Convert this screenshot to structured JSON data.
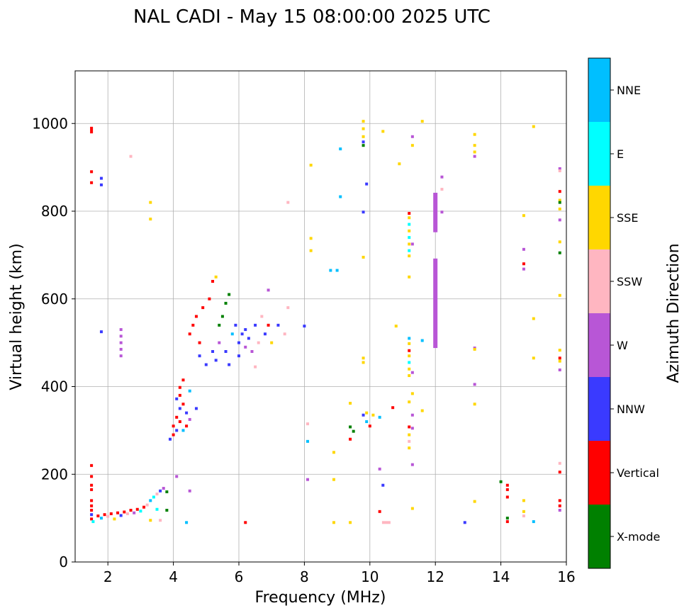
{
  "chart_data": {
    "type": "scatter",
    "title": "NAL CADI - May 15 08:00:00 2025 UTC",
    "xlabel": "Frequency (MHz)",
    "ylabel": "Virtual height (km)",
    "xlim": [
      1.0,
      16.0
    ],
    "ylim": [
      0,
      1120
    ],
    "xticks": [
      2,
      4,
      6,
      8,
      10,
      12,
      14,
      16
    ],
    "yticks": [
      0,
      200,
      400,
      600,
      800,
      1000
    ],
    "grid": true,
    "colorbar": {
      "label": "Azimuth Direction",
      "categories": [
        {
          "name": "X-mode",
          "color": "#008000"
        },
        {
          "name": "Vertical",
          "color": "#ff0000"
        },
        {
          "name": "NNW",
          "color": "#3a3aff"
        },
        {
          "name": "W",
          "color": "#b856d6"
        },
        {
          "name": "SSW",
          "color": "#ffb6c1"
        },
        {
          "name": "SSE",
          "color": "#ffd700"
        },
        {
          "name": "E",
          "color": "#00ffff"
        },
        {
          "name": "NNE",
          "color": "#00bfff"
        }
      ]
    },
    "points": [
      {
        "f": 1.5,
        "h": 985,
        "c": "Vertical",
        "hh": 15
      },
      {
        "f": 1.5,
        "h": 890,
        "c": "Vertical"
      },
      {
        "f": 1.5,
        "h": 865,
        "c": "Vertical"
      },
      {
        "f": 1.5,
        "h": 220,
        "c": "Vertical"
      },
      {
        "f": 1.5,
        "h": 195,
        "c": "Vertical"
      },
      {
        "f": 1.5,
        "h": 175,
        "c": "Vertical"
      },
      {
        "f": 1.5,
        "h": 165,
        "c": "Vertical"
      },
      {
        "f": 1.5,
        "h": 140,
        "c": "Vertical"
      },
      {
        "f": 1.5,
        "h": 128,
        "c": "Vertical"
      },
      {
        "f": 1.5,
        "h": 118,
        "c": "Vertical"
      },
      {
        "f": 1.5,
        "h": 108,
        "c": "NNW"
      },
      {
        "f": 1.5,
        "h": 98,
        "c": "Vertical"
      },
      {
        "f": 1.55,
        "h": 92,
        "c": "E"
      },
      {
        "f": 1.8,
        "h": 875,
        "c": "NNW"
      },
      {
        "f": 1.8,
        "h": 860,
        "c": "NNW"
      },
      {
        "f": 1.8,
        "h": 525,
        "c": "NNW"
      },
      {
        "f": 2.4,
        "h": 530,
        "c": "W"
      },
      {
        "f": 2.4,
        "h": 515,
        "c": "W"
      },
      {
        "f": 2.4,
        "h": 500,
        "c": "W"
      },
      {
        "f": 2.4,
        "h": 485,
        "c": "W"
      },
      {
        "f": 2.4,
        "h": 470,
        "c": "W"
      },
      {
        "f": 2.7,
        "h": 925,
        "c": "SSW"
      },
      {
        "f": 3.3,
        "h": 820,
        "c": "SSE"
      },
      {
        "f": 3.3,
        "h": 782,
        "c": "SSE"
      },
      {
        "f": 1.7,
        "h": 105,
        "c": "Vertical"
      },
      {
        "f": 1.8,
        "h": 100,
        "c": "NNE"
      },
      {
        "f": 1.9,
        "h": 108,
        "c": "Vertical"
      },
      {
        "f": 2.0,
        "h": 104,
        "c": "SSW"
      },
      {
        "f": 2.1,
        "h": 110,
        "c": "Vertical"
      },
      {
        "f": 2.2,
        "h": 98,
        "c": "SSE"
      },
      {
        "f": 2.3,
        "h": 112,
        "c": "Vertical"
      },
      {
        "f": 2.4,
        "h": 106,
        "c": "NNW"
      },
      {
        "f": 2.5,
        "h": 114,
        "c": "Vertical"
      },
      {
        "f": 2.6,
        "h": 110,
        "c": "SSW"
      },
      {
        "f": 2.7,
        "h": 118,
        "c": "Vertical"
      },
      {
        "f": 2.8,
        "h": 112,
        "c": "W"
      },
      {
        "f": 2.9,
        "h": 120,
        "c": "Vertical"
      },
      {
        "f": 3.0,
        "h": 116,
        "c": "E"
      },
      {
        "f": 3.1,
        "h": 125,
        "c": "Vertical"
      },
      {
        "f": 3.2,
        "h": 130,
        "c": "SSW"
      },
      {
        "f": 3.3,
        "h": 140,
        "c": "NNE"
      },
      {
        "f": 3.4,
        "h": 148,
        "c": "E"
      },
      {
        "f": 3.5,
        "h": 155,
        "c": "SSW"
      },
      {
        "f": 3.6,
        "h": 162,
        "c": "NNW"
      },
      {
        "f": 3.7,
        "h": 168,
        "c": "W"
      },
      {
        "f": 3.8,
        "h": 160,
        "c": "X-mode"
      },
      {
        "f": 3.5,
        "h": 120,
        "c": "E"
      },
      {
        "f": 3.8,
        "h": 118,
        "c": "X-mode"
      },
      {
        "f": 3.3,
        "h": 95,
        "c": "SSE"
      },
      {
        "f": 3.6,
        "h": 95,
        "c": "SSW"
      },
      {
        "f": 4.1,
        "h": 195,
        "c": "W"
      },
      {
        "f": 4.4,
        "h": 90,
        "c": "NNE"
      },
      {
        "f": 6.2,
        "h": 90,
        "c": "Vertical"
      },
      {
        "f": 4.5,
        "h": 162,
        "c": "W"
      },
      {
        "f": 3.9,
        "h": 280,
        "c": "NNW"
      },
      {
        "f": 4.0,
        "h": 290,
        "c": "Vertical"
      },
      {
        "f": 4.0,
        "h": 310,
        "c": "Vertical"
      },
      {
        "f": 4.1,
        "h": 300,
        "c": "NNW"
      },
      {
        "f": 4.1,
        "h": 330,
        "c": "Vertical"
      },
      {
        "f": 4.2,
        "h": 350,
        "c": "NNW"
      },
      {
        "f": 4.2,
        "h": 320,
        "c": "Vertical"
      },
      {
        "f": 4.3,
        "h": 360,
        "c": "Vertical"
      },
      {
        "f": 4.3,
        "h": 300,
        "c": "NNE"
      },
      {
        "f": 4.4,
        "h": 340,
        "c": "NNW"
      },
      {
        "f": 4.4,
        "h": 310,
        "c": "Vertical"
      },
      {
        "f": 4.2,
        "h": 380,
        "c": "Vertical"
      },
      {
        "f": 4.2,
        "h": 398,
        "c": "Vertical"
      },
      {
        "f": 4.3,
        "h": 415,
        "c": "Vertical"
      },
      {
        "f": 4.5,
        "h": 390,
        "c": "NNE"
      },
      {
        "f": 4.7,
        "h": 350,
        "c": "NNW"
      },
      {
        "f": 4.1,
        "h": 372,
        "c": "NNW"
      },
      {
        "f": 4.5,
        "h": 325,
        "c": "W"
      },
      {
        "f": 4.5,
        "h": 520,
        "c": "Vertical"
      },
      {
        "f": 4.6,
        "h": 540,
        "c": "Vertical"
      },
      {
        "f": 4.7,
        "h": 560,
        "c": "Vertical"
      },
      {
        "f": 4.8,
        "h": 500,
        "c": "Vertical"
      },
      {
        "f": 4.9,
        "h": 580,
        "c": "Vertical"
      },
      {
        "f": 4.8,
        "h": 470,
        "c": "NNW"
      },
      {
        "f": 5.0,
        "h": 450,
        "c": "NNW"
      },
      {
        "f": 5.1,
        "h": 600,
        "c": "Vertical"
      },
      {
        "f": 5.2,
        "h": 640,
        "c": "Vertical"
      },
      {
        "f": 5.3,
        "h": 650,
        "c": "SSE"
      },
      {
        "f": 5.2,
        "h": 480,
        "c": "NNW"
      },
      {
        "f": 5.3,
        "h": 460,
        "c": "NNW"
      },
      {
        "f": 5.4,
        "h": 500,
        "c": "W"
      },
      {
        "f": 5.4,
        "h": 540,
        "c": "X-mode"
      },
      {
        "f": 5.5,
        "h": 560,
        "c": "X-mode"
      },
      {
        "f": 5.6,
        "h": 590,
        "c": "X-mode"
      },
      {
        "f": 5.7,
        "h": 610,
        "c": "X-mode"
      },
      {
        "f": 5.6,
        "h": 480,
        "c": "NNW"
      },
      {
        "f": 5.7,
        "h": 450,
        "c": "NNW"
      },
      {
        "f": 5.8,
        "h": 520,
        "c": "NNE"
      },
      {
        "f": 5.9,
        "h": 540,
        "c": "NNW"
      },
      {
        "f": 6.0,
        "h": 500,
        "c": "NNW"
      },
      {
        "f": 6.0,
        "h": 470,
        "c": "NNW"
      },
      {
        "f": 6.1,
        "h": 520,
        "c": "NNW"
      },
      {
        "f": 6.2,
        "h": 490,
        "c": "W"
      },
      {
        "f": 6.2,
        "h": 530,
        "c": "NNW"
      },
      {
        "f": 6.3,
        "h": 510,
        "c": "NNW"
      },
      {
        "f": 6.4,
        "h": 480,
        "c": "W"
      },
      {
        "f": 6.5,
        "h": 540,
        "c": "NNW"
      },
      {
        "f": 6.6,
        "h": 500,
        "c": "SSW"
      },
      {
        "f": 6.7,
        "h": 560,
        "c": "SSW"
      },
      {
        "f": 6.8,
        "h": 520,
        "c": "NNW"
      },
      {
        "f": 6.9,
        "h": 540,
        "c": "Vertical"
      },
      {
        "f": 7.0,
        "h": 500,
        "c": "SSE"
      },
      {
        "f": 7.2,
        "h": 540,
        "c": "NNW"
      },
      {
        "f": 7.4,
        "h": 520,
        "c": "SSW"
      },
      {
        "f": 7.5,
        "h": 580,
        "c": "SSW"
      },
      {
        "f": 6.9,
        "h": 620,
        "c": "W"
      },
      {
        "f": 6.5,
        "h": 445,
        "c": "SSW"
      },
      {
        "f": 7.5,
        "h": 820,
        "c": "SSW"
      },
      {
        "f": 8.0,
        "h": 538,
        "c": "NNW"
      },
      {
        "f": 8.1,
        "h": 315,
        "c": "SSW"
      },
      {
        "f": 8.1,
        "h": 275,
        "c": "NNE"
      },
      {
        "f": 8.1,
        "h": 188,
        "c": "W"
      },
      {
        "f": 8.2,
        "h": 905,
        "c": "SSE"
      },
      {
        "f": 8.2,
        "h": 738,
        "c": "SSE"
      },
      {
        "f": 8.2,
        "h": 710,
        "c": "SSE"
      },
      {
        "f": 8.8,
        "h": 665,
        "c": "NNE"
      },
      {
        "f": 9.0,
        "h": 665,
        "c": "NNE"
      },
      {
        "f": 8.9,
        "h": 250,
        "c": "SSE"
      },
      {
        "f": 8.9,
        "h": 188,
        "c": "SSE"
      },
      {
        "f": 8.9,
        "h": 90,
        "c": "SSE"
      },
      {
        "f": 9.1,
        "h": 942,
        "c": "NNE"
      },
      {
        "f": 9.1,
        "h": 833,
        "c": "NNE"
      },
      {
        "f": 9.4,
        "h": 362,
        "c": "SSE"
      },
      {
        "f": 9.4,
        "h": 308,
        "c": "X-mode"
      },
      {
        "f": 9.5,
        "h": 298,
        "c": "X-mode"
      },
      {
        "f": 9.4,
        "h": 280,
        "c": "Vertical"
      },
      {
        "f": 9.4,
        "h": 90,
        "c": "SSE"
      },
      {
        "f": 9.8,
        "h": 1005,
        "c": "SSE"
      },
      {
        "f": 9.8,
        "h": 988,
        "c": "SSE"
      },
      {
        "f": 9.8,
        "h": 970,
        "c": "SSE"
      },
      {
        "f": 9.8,
        "h": 958,
        "c": "NNW"
      },
      {
        "f": 9.8,
        "h": 950,
        "c": "X-mode"
      },
      {
        "f": 9.8,
        "h": 798,
        "c": "NNW"
      },
      {
        "f": 9.8,
        "h": 695,
        "c": "SSE"
      },
      {
        "f": 9.8,
        "h": 465,
        "c": "SSE"
      },
      {
        "f": 9.8,
        "h": 455,
        "c": "SSE"
      },
      {
        "f": 9.9,
        "h": 862,
        "c": "NNW"
      },
      {
        "f": 9.8,
        "h": 335,
        "c": "NNW"
      },
      {
        "f": 9.9,
        "h": 340,
        "c": "SSE"
      },
      {
        "f": 9.9,
        "h": 320,
        "c": "NNE"
      },
      {
        "f": 10.0,
        "h": 310,
        "c": "Vertical"
      },
      {
        "f": 10.1,
        "h": 335,
        "c": "SSE"
      },
      {
        "f": 10.3,
        "h": 330,
        "c": "NNE"
      },
      {
        "f": 10.4,
        "h": 982,
        "c": "SSE"
      },
      {
        "f": 10.5,
        "h": 90,
        "c": "SSW",
        "ww": 3
      },
      {
        "f": 10.3,
        "h": 212,
        "c": "W"
      },
      {
        "f": 10.3,
        "h": 115,
        "c": "Vertical"
      },
      {
        "f": 10.4,
        "h": 175,
        "c": "NNW"
      },
      {
        "f": 10.7,
        "h": 352,
        "c": "Vertical"
      },
      {
        "f": 10.9,
        "h": 908,
        "c": "SSE"
      },
      {
        "f": 10.8,
        "h": 538,
        "c": "SSE"
      },
      {
        "f": 11.2,
        "h": 795,
        "c": "Vertical"
      },
      {
        "f": 11.2,
        "h": 785,
        "c": "SSE"
      },
      {
        "f": 11.2,
        "h": 770,
        "c": "E"
      },
      {
        "f": 11.2,
        "h": 755,
        "c": "SSE"
      },
      {
        "f": 11.2,
        "h": 740,
        "c": "E"
      },
      {
        "f": 11.2,
        "h": 725,
        "c": "SSE"
      },
      {
        "f": 11.2,
        "h": 710,
        "c": "E"
      },
      {
        "f": 11.2,
        "h": 698,
        "c": "SSE"
      },
      {
        "f": 11.2,
        "h": 650,
        "c": "SSE"
      },
      {
        "f": 11.2,
        "h": 510,
        "c": "NNE"
      },
      {
        "f": 11.2,
        "h": 498,
        "c": "SSE"
      },
      {
        "f": 11.2,
        "h": 482,
        "c": "Vertical"
      },
      {
        "f": 11.2,
        "h": 470,
        "c": "SSE"
      },
      {
        "f": 11.2,
        "h": 455,
        "c": "E"
      },
      {
        "f": 11.2,
        "h": 440,
        "c": "SSE"
      },
      {
        "f": 11.2,
        "h": 425,
        "c": "SSE"
      },
      {
        "f": 11.2,
        "h": 365,
        "c": "SSE"
      },
      {
        "f": 11.2,
        "h": 308,
        "c": "Vertical"
      },
      {
        "f": 11.2,
        "h": 290,
        "c": "SSE"
      },
      {
        "f": 11.2,
        "h": 275,
        "c": "SSW"
      },
      {
        "f": 11.2,
        "h": 260,
        "c": "SSE"
      },
      {
        "f": 11.3,
        "h": 432,
        "c": "W"
      },
      {
        "f": 11.3,
        "h": 384,
        "c": "SSE"
      },
      {
        "f": 11.3,
        "h": 335,
        "c": "W"
      },
      {
        "f": 11.3,
        "h": 305,
        "c": "W"
      },
      {
        "f": 11.3,
        "h": 222,
        "c": "W"
      },
      {
        "f": 11.3,
        "h": 122,
        "c": "SSE"
      },
      {
        "f": 11.3,
        "h": 970,
        "c": "W"
      },
      {
        "f": 11.3,
        "h": 950,
        "c": "SSE"
      },
      {
        "f": 11.3,
        "h": 725,
        "c": "W"
      },
      {
        "f": 11.6,
        "h": 1005,
        "c": "SSE"
      },
      {
        "f": 11.6,
        "h": 505,
        "c": "NNE"
      },
      {
        "f": 11.6,
        "h": 345,
        "c": "SSE"
      },
      {
        "f": 12.2,
        "h": 878,
        "c": "W"
      },
      {
        "f": 12.2,
        "h": 850,
        "c": "SSW"
      },
      {
        "f": 12.2,
        "h": 798,
        "c": "W"
      },
      {
        "f": 13.2,
        "h": 975,
        "c": "SSE"
      },
      {
        "f": 13.2,
        "h": 950,
        "c": "SSE"
      },
      {
        "f": 13.2,
        "h": 935,
        "c": "SSE"
      },
      {
        "f": 13.2,
        "h": 925,
        "c": "W"
      },
      {
        "f": 13.2,
        "h": 488,
        "c": "W"
      },
      {
        "f": 13.2,
        "h": 485,
        "c": "SSE"
      },
      {
        "f": 13.2,
        "h": 405,
        "c": "W"
      },
      {
        "f": 13.2,
        "h": 360,
        "c": "SSE"
      },
      {
        "f": 13.2,
        "h": 138,
        "c": "SSE"
      },
      {
        "f": 12.9,
        "h": 90,
        "c": "NNW"
      },
      {
        "f": 14.0,
        "h": 183,
        "c": "X-mode"
      },
      {
        "f": 14.2,
        "h": 175,
        "c": "Vertical"
      },
      {
        "f": 14.2,
        "h": 165,
        "c": "Vertical"
      },
      {
        "f": 14.2,
        "h": 148,
        "c": "Vertical"
      },
      {
        "f": 14.2,
        "h": 100,
        "c": "X-mode"
      },
      {
        "f": 14.2,
        "h": 92,
        "c": "Vertical"
      },
      {
        "f": 14.7,
        "h": 790,
        "c": "SSE"
      },
      {
        "f": 14.7,
        "h": 713,
        "c": "W"
      },
      {
        "f": 14.7,
        "h": 680,
        "c": "Vertical"
      },
      {
        "f": 14.7,
        "h": 668,
        "c": "W"
      },
      {
        "f": 14.7,
        "h": 140,
        "c": "SSE"
      },
      {
        "f": 14.7,
        "h": 115,
        "c": "SSE"
      },
      {
        "f": 14.7,
        "h": 105,
        "c": "SSW"
      },
      {
        "f": 15.0,
        "h": 993,
        "c": "SSE"
      },
      {
        "f": 15.0,
        "h": 555,
        "c": "SSE"
      },
      {
        "f": 15.0,
        "h": 465,
        "c": "SSE"
      },
      {
        "f": 15.0,
        "h": 92,
        "c": "NNE"
      },
      {
        "f": 15.8,
        "h": 897,
        "c": "W"
      },
      {
        "f": 15.8,
        "h": 892,
        "c": "SSW"
      },
      {
        "f": 15.8,
        "h": 845,
        "c": "Vertical"
      },
      {
        "f": 15.8,
        "h": 825,
        "c": "SSE"
      },
      {
        "f": 15.8,
        "h": 820,
        "c": "X-mode"
      },
      {
        "f": 15.8,
        "h": 805,
        "c": "SSE"
      },
      {
        "f": 15.8,
        "h": 780,
        "c": "W"
      },
      {
        "f": 15.8,
        "h": 730,
        "c": "SSE"
      },
      {
        "f": 15.8,
        "h": 705,
        "c": "X-mode"
      },
      {
        "f": 15.8,
        "h": 608,
        "c": "SSE"
      },
      {
        "f": 15.8,
        "h": 483,
        "c": "SSE"
      },
      {
        "f": 15.8,
        "h": 465,
        "c": "Vertical"
      },
      {
        "f": 15.8,
        "h": 458,
        "c": "SSE"
      },
      {
        "f": 15.8,
        "h": 438,
        "c": "W"
      },
      {
        "f": 15.8,
        "h": 225,
        "c": "SSW"
      },
      {
        "f": 15.8,
        "h": 205,
        "c": "Vertical"
      },
      {
        "f": 15.8,
        "h": 140,
        "c": "Vertical"
      },
      {
        "f": 15.8,
        "h": 128,
        "c": "Vertical"
      },
      {
        "f": 15.8,
        "h": 118,
        "c": "W"
      }
    ],
    "bars": [
      {
        "f": 12.0,
        "h0": 752,
        "h1": 842,
        "c": "W"
      },
      {
        "f": 12.0,
        "h0": 488,
        "h1": 692,
        "c": "W"
      }
    ]
  }
}
